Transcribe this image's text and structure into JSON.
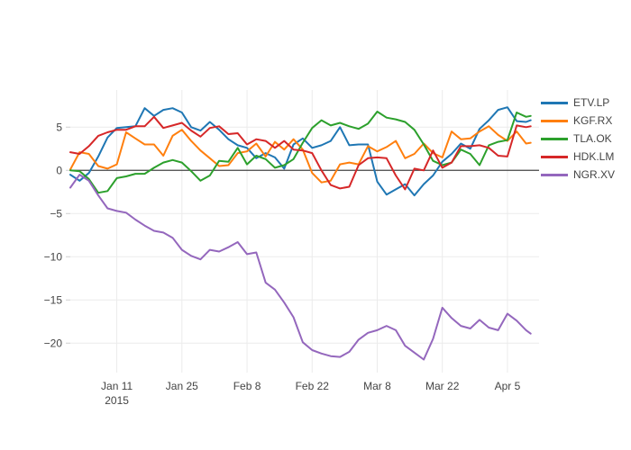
{
  "style": {
    "background": "#ffffff",
    "grid_color": "#ebebeb",
    "zero_line_color": "#444444",
    "tick_text_color": "#444444",
    "tick_mark_color": "#d0d0d0"
  },
  "chart_data": {
    "type": "line",
    "title": "",
    "xlabel": "",
    "ylabel": "",
    "grid": true,
    "zero_line": true,
    "legend_position": "right",
    "x_unit": "days since Jan 1 2015",
    "x_range_days": [
      0,
      100.8
    ],
    "y_range": [
      -23.2,
      9.3
    ],
    "x_ticks": [
      {
        "day": 10,
        "label": "Jan 11",
        "sublabel": "2015"
      },
      {
        "day": 24,
        "label": "Jan 25",
        "sublabel": ""
      },
      {
        "day": 38,
        "label": "Feb 8",
        "sublabel": ""
      },
      {
        "day": 52,
        "label": "Feb 22",
        "sublabel": ""
      },
      {
        "day": 66,
        "label": "Mar 8",
        "sublabel": ""
      },
      {
        "day": 80,
        "label": "Mar 22",
        "sublabel": ""
      },
      {
        "day": 94,
        "label": "Apr 5",
        "sublabel": ""
      }
    ],
    "y_ticks": [
      {
        "value": 5,
        "label": "5"
      },
      {
        "value": 0,
        "label": "0"
      },
      {
        "value": -5,
        "label": "−5"
      },
      {
        "value": -10,
        "label": "−10"
      },
      {
        "value": -15,
        "label": "−15"
      },
      {
        "value": -20,
        "label": "−20"
      }
    ],
    "x": [
      0,
      2,
      4,
      6,
      8,
      10,
      12,
      14,
      16,
      18,
      20,
      22,
      24,
      26,
      28,
      30,
      32,
      34,
      36,
      38,
      40,
      42,
      44,
      46,
      48,
      50,
      52,
      54,
      56,
      58,
      60,
      62,
      64,
      66,
      68,
      70,
      72,
      74,
      76,
      78,
      80,
      82,
      84,
      86,
      88,
      90,
      92,
      94,
      96,
      98,
      99
    ],
    "series": [
      {
        "name": "ETV.LP",
        "color": "#1f77b4",
        "values": [
          -0.5,
          -1.2,
          -0.3,
          1.6,
          3.8,
          4.9,
          5.0,
          5.1,
          7.2,
          6.3,
          7.0,
          7.2,
          6.7,
          5.0,
          4.6,
          5.6,
          4.7,
          3.6,
          2.9,
          2.6,
          1.4,
          2.0,
          1.5,
          0.2,
          3.0,
          3.7,
          2.6,
          2.9,
          3.4,
          5.0,
          2.9,
          3.0,
          3.0,
          -1.3,
          -2.8,
          -2.2,
          -1.6,
          -2.9,
          -1.6,
          -0.6,
          1.0,
          1.9,
          3.1,
          2.5,
          4.8,
          5.8,
          7.0,
          7.3,
          5.7,
          5.6,
          5.8
        ]
      },
      {
        "name": "KGF.RX",
        "color": "#ff7f0e",
        "values": [
          0.1,
          2.1,
          1.9,
          0.5,
          0.2,
          0.7,
          4.4,
          3.7,
          3.0,
          3.0,
          1.7,
          4.0,
          4.7,
          3.4,
          2.3,
          1.4,
          0.5,
          0.6,
          2.0,
          2.2,
          3.1,
          1.6,
          3.3,
          2.4,
          3.6,
          2.4,
          -0.3,
          -1.4,
          -1.2,
          0.7,
          0.9,
          0.7,
          2.8,
          2.2,
          2.7,
          3.4,
          1.4,
          1.9,
          3.1,
          2.0,
          1.5,
          4.5,
          3.6,
          3.7,
          4.5,
          5.1,
          4.1,
          3.4,
          4.5,
          3.1,
          3.2
        ]
      },
      {
        "name": "TLA.OK",
        "color": "#2ca02c",
        "values": [
          0.0,
          -0.1,
          -1.0,
          -2.6,
          -2.4,
          -0.9,
          -0.7,
          -0.4,
          -0.4,
          0.3,
          0.9,
          1.2,
          0.9,
          -0.1,
          -1.2,
          -0.6,
          1.1,
          1.0,
          2.6,
          0.7,
          1.7,
          1.3,
          0.3,
          0.6,
          1.3,
          3.2,
          4.9,
          5.8,
          5.2,
          5.5,
          5.1,
          4.8,
          5.4,
          6.8,
          6.1,
          5.9,
          5.6,
          4.7,
          3.0,
          1.1,
          0.6,
          0.9,
          2.4,
          1.9,
          0.6,
          2.9,
          3.3,
          3.5,
          6.7,
          6.2,
          6.3
        ]
      },
      {
        "name": "HDK.LM",
        "color": "#d62728",
        "values": [
          2.1,
          1.9,
          2.8,
          4.0,
          4.4,
          4.7,
          4.7,
          5.1,
          5.1,
          6.2,
          4.9,
          5.2,
          5.5,
          4.6,
          3.9,
          4.9,
          5.1,
          4.2,
          4.3,
          3.0,
          3.6,
          3.4,
          2.6,
          3.4,
          2.4,
          2.3,
          2.0,
          0.0,
          -1.7,
          -2.1,
          -1.9,
          0.6,
          1.4,
          1.5,
          1.4,
          -0.6,
          -2.2,
          0.2,
          0.0,
          2.3,
          0.3,
          0.9,
          2.8,
          2.8,
          2.9,
          2.6,
          1.7,
          1.6,
          5.2,
          5.0,
          5.1
        ]
      },
      {
        "name": "NGR.XV",
        "color": "#9467bd",
        "values": [
          -2.0,
          -0.5,
          -1.2,
          -2.9,
          -4.4,
          -4.7,
          -4.9,
          -5.7,
          -6.4,
          -7.0,
          -7.2,
          -7.8,
          -9.2,
          -9.9,
          -10.3,
          -9.2,
          -9.4,
          -8.9,
          -8.3,
          -9.7,
          -9.5,
          -13.0,
          -13.8,
          -15.3,
          -17.0,
          -19.9,
          -20.8,
          -21.2,
          -21.5,
          -21.6,
          -21.0,
          -19.6,
          -18.8,
          -18.5,
          -18.0,
          -18.5,
          -20.3,
          -21.1,
          -21.9,
          -19.5,
          -15.9,
          -17.1,
          -18.0,
          -18.3,
          -17.3,
          -18.2,
          -18.5,
          -16.6,
          -17.4,
          -18.5,
          -18.9
        ]
      }
    ]
  }
}
